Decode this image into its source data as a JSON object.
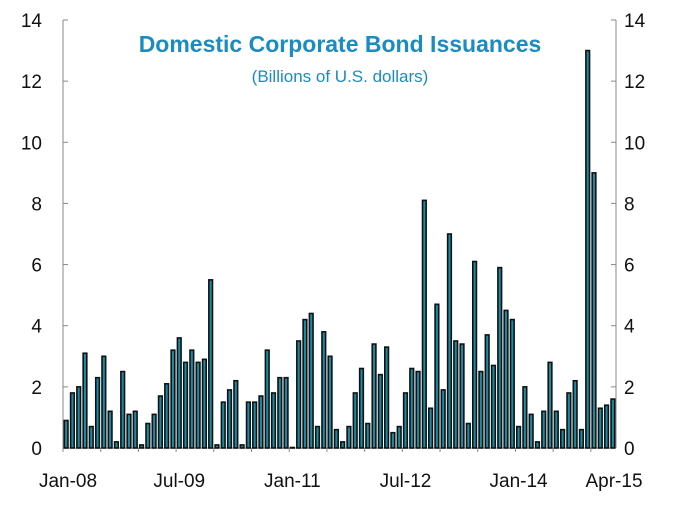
{
  "chart_data": {
    "type": "bar",
    "title": "Domestic Corporate Bond Issuances",
    "subtitle": "(Billions of U.S. dollars)",
    "xlabel": "",
    "ylabel": "",
    "ylim": [
      0,
      14
    ],
    "yticks": [
      0,
      2,
      4,
      6,
      8,
      10,
      12,
      14
    ],
    "y_axes": "both",
    "grid": false,
    "x_tick_labels": [
      "Jan-08",
      "Jul-09",
      "Jan-11",
      "Jul-12",
      "Jan-14",
      "Apr-15"
    ],
    "x_tick_label_indices": [
      0,
      18,
      36,
      54,
      72,
      87
    ],
    "categories": [
      "Jan-08",
      "Feb-08",
      "Mar-08",
      "Apr-08",
      "May-08",
      "Jun-08",
      "Jul-08",
      "Aug-08",
      "Sep-08",
      "Oct-08",
      "Nov-08",
      "Dec-08",
      "Jan-09",
      "Feb-09",
      "Mar-09",
      "Apr-09",
      "May-09",
      "Jun-09",
      "Jul-09",
      "Aug-09",
      "Sep-09",
      "Oct-09",
      "Nov-09",
      "Dec-09",
      "Jan-10",
      "Feb-10",
      "Mar-10",
      "Apr-10",
      "May-10",
      "Jun-10",
      "Jul-10",
      "Aug-10",
      "Sep-10",
      "Oct-10",
      "Nov-10",
      "Dec-10",
      "Jan-11",
      "Feb-11",
      "Mar-11",
      "Apr-11",
      "May-11",
      "Jun-11",
      "Jul-11",
      "Aug-11",
      "Sep-11",
      "Oct-11",
      "Nov-11",
      "Dec-11",
      "Jan-12",
      "Feb-12",
      "Mar-12",
      "Apr-12",
      "May-12",
      "Jun-12",
      "Jul-12",
      "Aug-12",
      "Sep-12",
      "Oct-12",
      "Nov-12",
      "Dec-12",
      "Jan-13",
      "Feb-13",
      "Mar-13",
      "Apr-13",
      "May-13",
      "Jun-13",
      "Jul-13",
      "Aug-13",
      "Sep-13",
      "Oct-13",
      "Nov-13",
      "Dec-13",
      "Jan-14",
      "Feb-14",
      "Mar-14",
      "Apr-14",
      "May-14",
      "Jun-14",
      "Jul-14",
      "Aug-14",
      "Sep-14",
      "Oct-14",
      "Nov-14",
      "Dec-14",
      "Jan-15",
      "Feb-15",
      "Mar-15",
      "Apr-15"
    ],
    "series": [
      {
        "name": "Domestic Corporate Bond Issuances",
        "values": [
          0.9,
          1.8,
          2.0,
          3.1,
          0.7,
          2.3,
          3.0,
          1.2,
          0.2,
          2.5,
          1.1,
          1.2,
          0.1,
          0.8,
          1.1,
          1.7,
          2.1,
          3.2,
          3.6,
          2.8,
          3.2,
          2.8,
          2.9,
          5.5,
          0.1,
          1.5,
          1.9,
          2.2,
          0.1,
          1.5,
          1.5,
          1.7,
          3.2,
          1.8,
          2.3,
          2.3,
          0.0,
          3.5,
          4.2,
          4.4,
          0.7,
          3.8,
          3.0,
          0.6,
          0.2,
          0.7,
          1.8,
          2.6,
          0.8,
          3.4,
          2.4,
          3.3,
          0.5,
          0.7,
          1.8,
          2.6,
          2.5,
          8.1,
          1.3,
          4.7,
          1.9,
          7.0,
          3.5,
          3.4,
          0.8,
          6.1,
          2.5,
          3.7,
          2.7,
          5.9,
          4.5,
          4.2,
          0.7,
          2.0,
          1.1,
          0.2,
          1.2,
          2.8,
          1.2,
          0.6,
          1.8,
          2.2,
          0.6,
          13.0,
          9.0,
          1.3,
          1.4,
          1.6
        ]
      }
    ],
    "colors": {
      "bar_fill": "#1b8aa3",
      "bar_stroke": "#111111",
      "title": "#1a8cbf",
      "axis": "#888888",
      "tick_text": "#111111"
    }
  }
}
